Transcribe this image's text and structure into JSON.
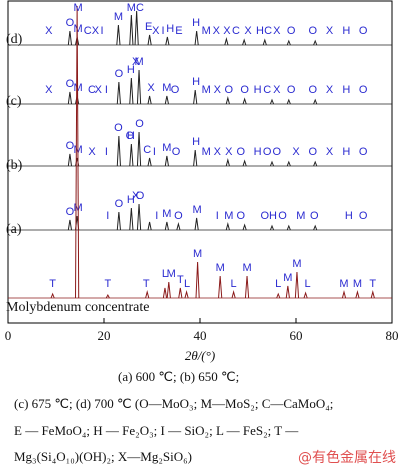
{
  "chart_data": {
    "type": "xrd",
    "xlabel": "2θ/(°)",
    "xlim": [
      0,
      80
    ],
    "xticks": [
      0,
      20,
      40,
      60,
      80
    ],
    "series": [
      {
        "name": "(d)",
        "color": "#222222",
        "x": [
          12.9,
          14.4,
          23.0,
          25.7,
          26.8,
          29.5,
          33.2,
          39.3,
          45.5,
          49.2,
          53.5,
          58.5,
          64.0
        ],
        "values": [
          14,
          8,
          20,
          30,
          34,
          10,
          8,
          14,
          6,
          5,
          5,
          4,
          4
        ],
        "annotations": [
          {
            "x": 8.5,
            "label": "X"
          },
          {
            "x": 12.9,
            "label": "O"
          },
          {
            "x": 14.6,
            "label": "M"
          },
          {
            "x": 16.6,
            "label": "C"
          },
          {
            "x": 18.2,
            "label": "X"
          },
          {
            "x": 19.6,
            "label": "I"
          },
          {
            "x": 23.0,
            "label": "M"
          },
          {
            "x": 25.7,
            "label": "M"
          },
          {
            "x": 27.5,
            "label": "C"
          },
          {
            "x": 29.3,
            "label": "E"
          },
          {
            "x": 30.8,
            "label": "X"
          },
          {
            "x": 32.3,
            "label": "I"
          },
          {
            "x": 33.8,
            "label": "H"
          },
          {
            "x": 35.6,
            "label": "E"
          },
          {
            "x": 39.2,
            "label": "H"
          },
          {
            "x": 41.3,
            "label": "M"
          },
          {
            "x": 43.4,
            "label": "X"
          },
          {
            "x": 45.6,
            "label": "X"
          },
          {
            "x": 47.5,
            "label": "C"
          },
          {
            "x": 50.0,
            "label": "X"
          },
          {
            "x": 52.5,
            "label": "H"
          },
          {
            "x": 54.2,
            "label": "C"
          },
          {
            "x": 56.0,
            "label": "X"
          },
          {
            "x": 59.0,
            "label": "O"
          },
          {
            "x": 63.5,
            "label": "O"
          },
          {
            "x": 67.0,
            "label": "X"
          },
          {
            "x": 70.5,
            "label": "H"
          },
          {
            "x": 74.0,
            "label": "O"
          }
        ]
      },
      {
        "name": "(c)",
        "color": "#222222",
        "x": [
          12.9,
          14.4,
          23.1,
          25.7,
          27.3,
          29.5,
          33.1,
          39.0,
          45.8,
          49.3,
          55.0,
          58.5,
          64.0
        ],
        "values": [
          12,
          8,
          22,
          26,
          34,
          8,
          8,
          14,
          6,
          5,
          4,
          4,
          4
        ],
        "annotations": [
          {
            "x": 8.5,
            "label": "X"
          },
          {
            "x": 12.9,
            "label": "O"
          },
          {
            "x": 14.6,
            "label": "M"
          },
          {
            "x": 17.5,
            "label": "C"
          },
          {
            "x": 18.8,
            "label": "X"
          },
          {
            "x": 20.5,
            "label": "I"
          },
          {
            "x": 23.1,
            "label": "O"
          },
          {
            "x": 25.6,
            "label": "H"
          },
          {
            "x": 26.6,
            "label": "X"
          },
          {
            "x": 27.3,
            "label": "M"
          },
          {
            "x": 29.8,
            "label": "X"
          },
          {
            "x": 33.1,
            "label": "M"
          },
          {
            "x": 34.8,
            "label": "O"
          },
          {
            "x": 39.2,
            "label": "H"
          },
          {
            "x": 41.3,
            "label": "M"
          },
          {
            "x": 43.6,
            "label": "X"
          },
          {
            "x": 46.0,
            "label": "O"
          },
          {
            "x": 49.3,
            "label": "O"
          },
          {
            "x": 52.0,
            "label": "H"
          },
          {
            "x": 54.0,
            "label": "C"
          },
          {
            "x": 56.0,
            "label": "X"
          },
          {
            "x": 59.0,
            "label": "O"
          },
          {
            "x": 63.5,
            "label": "O"
          },
          {
            "x": 67.0,
            "label": "X"
          },
          {
            "x": 70.5,
            "label": "H"
          },
          {
            "x": 74.0,
            "label": "O"
          }
        ]
      },
      {
        "name": "(b)",
        "color": "#222222",
        "x": [
          12.9,
          14.4,
          23.1,
          25.7,
          27.3,
          29.5,
          33.1,
          39.0,
          45.8,
          49.3,
          55.0,
          58.5,
          64.0
        ],
        "values": [
          12,
          8,
          30,
          22,
          34,
          8,
          10,
          16,
          6,
          5,
          4,
          4,
          4
        ],
        "annotations": [
          {
            "x": 12.9,
            "label": "O"
          },
          {
            "x": 14.6,
            "label": "M"
          },
          {
            "x": 17.5,
            "label": "X"
          },
          {
            "x": 20.5,
            "label": "I"
          },
          {
            "x": 23.0,
            "label": "O"
          },
          {
            "x": 25.4,
            "label": "O"
          },
          {
            "x": 27.4,
            "label": "O"
          },
          {
            "x": 25.6,
            "label": "H"
          },
          {
            "x": 29.0,
            "label": "C"
          },
          {
            "x": 30.5,
            "label": "I"
          },
          {
            "x": 33.1,
            "label": "M"
          },
          {
            "x": 35.0,
            "label": "O"
          },
          {
            "x": 39.2,
            "label": "H"
          },
          {
            "x": 41.3,
            "label": "M"
          },
          {
            "x": 43.6,
            "label": "X"
          },
          {
            "x": 46.0,
            "label": "X"
          },
          {
            "x": 48.5,
            "label": "O"
          },
          {
            "x": 52.0,
            "label": "H"
          },
          {
            "x": 54.0,
            "label": "O"
          },
          {
            "x": 56.0,
            "label": "O"
          },
          {
            "x": 60.0,
            "label": "X"
          },
          {
            "x": 63.5,
            "label": "O"
          },
          {
            "x": 67.0,
            "label": "X"
          },
          {
            "x": 70.5,
            "label": "H"
          },
          {
            "x": 74.0,
            "label": "O"
          }
        ]
      },
      {
        "name": "(a)",
        "color": "#222222",
        "x": [
          12.9,
          14.4,
          23.1,
          25.7,
          27.3,
          29.5,
          33.1,
          35.5,
          39.3,
          45.8,
          49.3,
          55.0,
          58.5,
          64.0
        ],
        "values": [
          10,
          14,
          18,
          22,
          26,
          8,
          8,
          6,
          12,
          6,
          5,
          4,
          4,
          4
        ],
        "annotations": [
          {
            "x": 12.9,
            "label": "O"
          },
          {
            "x": 14.6,
            "label": "M"
          },
          {
            "x": 20.8,
            "label": "I"
          },
          {
            "x": 23.1,
            "label": "O"
          },
          {
            "x": 25.6,
            "label": "H"
          },
          {
            "x": 26.6,
            "label": "X"
          },
          {
            "x": 27.5,
            "label": "O"
          },
          {
            "x": 31.0,
            "label": "I"
          },
          {
            "x": 33.1,
            "label": "M"
          },
          {
            "x": 35.5,
            "label": "O"
          },
          {
            "x": 39.4,
            "label": "M"
          },
          {
            "x": 43.6,
            "label": "I"
          },
          {
            "x": 46.0,
            "label": "M"
          },
          {
            "x": 48.5,
            "label": "O"
          },
          {
            "x": 53.5,
            "label": "O"
          },
          {
            "x": 55.2,
            "label": "H"
          },
          {
            "x": 57.2,
            "label": "O"
          },
          {
            "x": 61.0,
            "label": "M"
          },
          {
            "x": 63.8,
            "label": "O"
          },
          {
            "x": 71.0,
            "label": "H"
          },
          {
            "x": 74.0,
            "label": "O"
          }
        ]
      },
      {
        "name": "Molybdenum concentrate",
        "color": "#8b1a1a",
        "x": [
          9.3,
          14.4,
          20.8,
          29.0,
          32.7,
          33.5,
          35.9,
          37.2,
          39.5,
          44.2,
          47.0,
          49.8,
          56.3,
          58.3,
          60.2,
          62.0,
          70.0,
          72.8,
          76.0
        ],
        "values": [
          4,
          292,
          3,
          6,
          10,
          16,
          10,
          6,
          36,
          22,
          6,
          22,
          4,
          12,
          26,
          5,
          6,
          6,
          6
        ],
        "annotations": [
          {
            "x": 9.3,
            "label": "T"
          },
          {
            "x": 14.6,
            "label": "M"
          },
          {
            "x": 20.8,
            "label": "T"
          },
          {
            "x": 28.8,
            "label": "T"
          },
          {
            "x": 32.7,
            "label": "L"
          },
          {
            "x": 34.0,
            "label": "M"
          },
          {
            "x": 35.9,
            "label": "T"
          },
          {
            "x": 37.3,
            "label": "L"
          },
          {
            "x": 39.5,
            "label": "M"
          },
          {
            "x": 44.2,
            "label": "M"
          },
          {
            "x": 47.0,
            "label": "L"
          },
          {
            "x": 49.8,
            "label": "M"
          },
          {
            "x": 56.3,
            "label": "L"
          },
          {
            "x": 58.3,
            "label": "M"
          },
          {
            "x": 60.2,
            "label": "M"
          },
          {
            "x": 62.4,
            "label": "L"
          },
          {
            "x": 70.0,
            "label": "M"
          },
          {
            "x": 72.8,
            "label": "M"
          },
          {
            "x": 76.0,
            "label": "T"
          }
        ]
      }
    ]
  },
  "caption": [
    "(a) 600 ℃; (b) 650 ℃;",
    "(c) 675 ℃; (d) 700 ℃ (O—MoO₃; M—MoS₂; C—CaMoO₄;",
    "E — FeMoO₄; H — Fe₂O₃; I — SiO₂; L — FeS₂; T —",
    "Mg₃(Si₄O₁₀)(OH)₂; X—Mg₂SiO₆)"
  ],
  "watermark": "@有色金属在线"
}
